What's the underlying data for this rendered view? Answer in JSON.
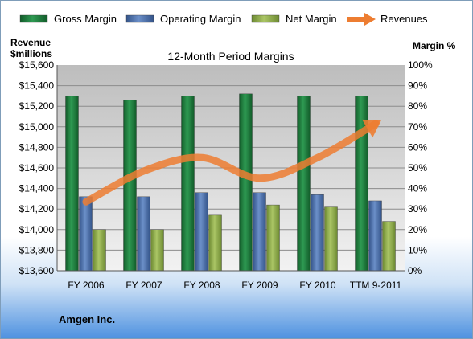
{
  "chart_data": {
    "type": "bar",
    "title": "12-Month Period Margins",
    "company": "Amgen Inc.",
    "categories": [
      "FY 2006",
      "FY 2007",
      "FY 2008",
      "FY 2009",
      "FY 2010",
      "TTM 9-2011"
    ],
    "series": [
      {
        "name": "Gross Margin",
        "type": "bar",
        "axis": "right",
        "values": [
          85,
          83,
          85,
          86,
          85,
          85
        ],
        "color": "#1f7a3c"
      },
      {
        "name": "Operating Margin",
        "type": "bar",
        "axis": "right",
        "values": [
          36,
          36,
          38,
          38,
          37,
          34
        ],
        "color": "#4a6fa5"
      },
      {
        "name": "Net Margin",
        "type": "bar",
        "axis": "right",
        "values": [
          20,
          20,
          27,
          32,
          31,
          24
        ],
        "color": "#8faa4a"
      },
      {
        "name": "Revenues",
        "type": "line",
        "axis": "left",
        "values": [
          14270,
          14570,
          14700,
          14500,
          14700,
          15030
        ],
        "color": "#ed7d31"
      }
    ],
    "left_axis": {
      "label_line1": "Revenue",
      "label_line2": "$millions",
      "ylim": [
        13600,
        15600
      ],
      "ticks": [
        "$15,600",
        "$15,400",
        "$15,200",
        "$15,000",
        "$14,800",
        "$14,600",
        "$14,400",
        "$14,200",
        "$14,000",
        "$13,800",
        "$13,600"
      ],
      "tick_values": [
        15600,
        15400,
        15200,
        15000,
        14800,
        14600,
        14400,
        14200,
        14000,
        13800,
        13600
      ]
    },
    "right_axis": {
      "label": "Margin %",
      "ylim": [
        0,
        100
      ],
      "ticks": [
        "100%",
        "90%",
        "80%",
        "70%",
        "60%",
        "50%",
        "40%",
        "30%",
        "20%",
        "10%",
        "0%"
      ]
    },
    "grid": true,
    "legend": "top"
  }
}
